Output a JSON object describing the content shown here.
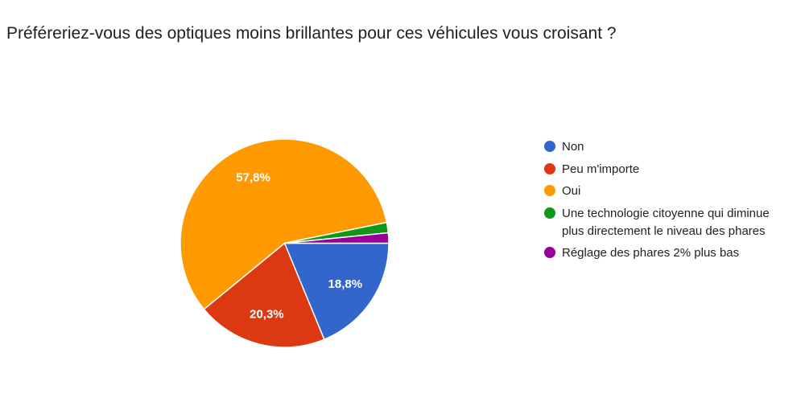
{
  "chart_data": {
    "type": "pie",
    "title": "Préféreriez-vous des optiques moins brillantes pour ces véhicules vous croisant ?",
    "legend_position": "right",
    "slices": [
      {
        "label": "Non",
        "value": 18.8,
        "display": "18,8%",
        "color": "#3366cc"
      },
      {
        "label": "Peu m'importe",
        "value": 20.3,
        "display": "20,3%",
        "color": "#dc3912"
      },
      {
        "label": "Oui",
        "value": 57.8,
        "display": "57,8%",
        "color": "#ff9900"
      },
      {
        "label": "Une technologie citoyenne qui diminue plus directement le niveau des phares",
        "legend_lines": [
          "Une technologie citoyenne qui diminue",
          "plus directement le niveau des phares"
        ],
        "value": 1.6,
        "display": "",
        "color": "#109618"
      },
      {
        "label": "Réglage des phares 2% plus bas",
        "value": 1.6,
        "display": "",
        "color": "#990099"
      }
    ]
  }
}
